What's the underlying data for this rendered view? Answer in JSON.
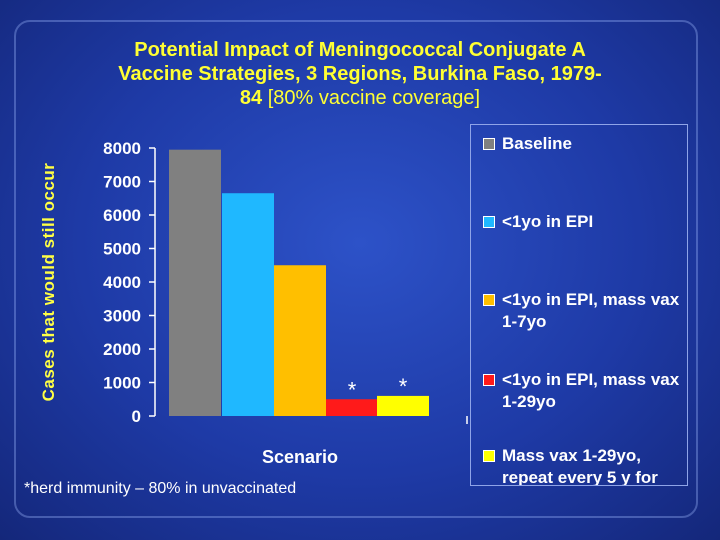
{
  "title": {
    "line1": "Potential Impact of Meningococcal Conjugate A",
    "line2": "Vaccine Strategies, 3 Regions, Burkina Faso, 1979-",
    "line3_bold": "84",
    "line3_rest": " [80% vaccine coverage]"
  },
  "footnote": "*herd immunity – 80% in unvaccinated",
  "colors": {
    "baseline": "#808080",
    "epi": "#1fb8ff",
    "epi_mass_1_7": "#ffbf00",
    "epi_mass_1_29": "#ff1a1a",
    "mass_repeat": "#ffff00",
    "title": "#ffff33"
  },
  "chart_data": {
    "type": "bar",
    "title": "Potential Impact of Meningococcal Conjugate A Vaccine Strategies, 3 Regions, Burkina Faso, 1979-84 [80% vaccine coverage]",
    "xlabel": "Scenario",
    "ylabel": "Cases that would still occur",
    "ylim": [
      0,
      8000
    ],
    "yticks": [
      "0",
      "1000",
      "2000",
      "3000",
      "4000",
      "5000",
      "6000",
      "7000",
      "8000"
    ],
    "series": [
      {
        "name": "Baseline",
        "value": 7950,
        "color": "#808080",
        "annotation": ""
      },
      {
        "name": "<1yo in EPI",
        "value": 6650,
        "color": "#1fb8ff",
        "annotation": ""
      },
      {
        "name": "<1yo in EPI, mass vax 1-7yo",
        "value": 4500,
        "color": "#ffbf00",
        "annotation": ""
      },
      {
        "name": "<1yo in EPI, mass vax 1-29yo",
        "value": 500,
        "color": "#ff1a1a",
        "annotation": "*"
      },
      {
        "name": "Mass vax 1-29yo, repeat every 5 y for",
        "value": 600,
        "color": "#ffff00",
        "annotation": "*"
      }
    ],
    "legend_position": "right"
  }
}
